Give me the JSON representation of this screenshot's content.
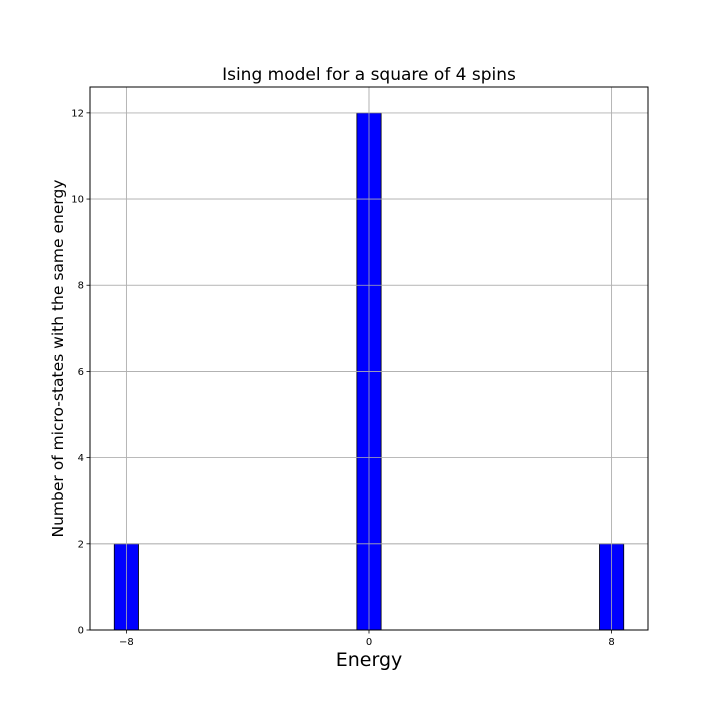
{
  "chart_data": {
    "type": "bar",
    "title": "Ising model for a square of 4 spins",
    "xlabel": "Energy",
    "ylabel": "Number of micro-states with the same energy",
    "bars": [
      {
        "x": -8,
        "value": 2
      },
      {
        "x": 0,
        "value": 12
      },
      {
        "x": 8,
        "value": 2
      }
    ],
    "bar_width": 0.8,
    "xlim": [
      -9.2,
      9.2
    ],
    "ylim": [
      0,
      12.6
    ],
    "xticks": [
      -8,
      0,
      8
    ],
    "xtick_labels": [
      "−8",
      "0",
      "8"
    ],
    "yticks": [
      0,
      2,
      4,
      6,
      8,
      10,
      12
    ],
    "ytick_labels": [
      "0",
      "2",
      "4",
      "6",
      "8",
      "10",
      "12"
    ],
    "grid": true,
    "bar_color": "#0000ff",
    "edge_color": "#000000",
    "grid_color": "#b0b0b0"
  }
}
